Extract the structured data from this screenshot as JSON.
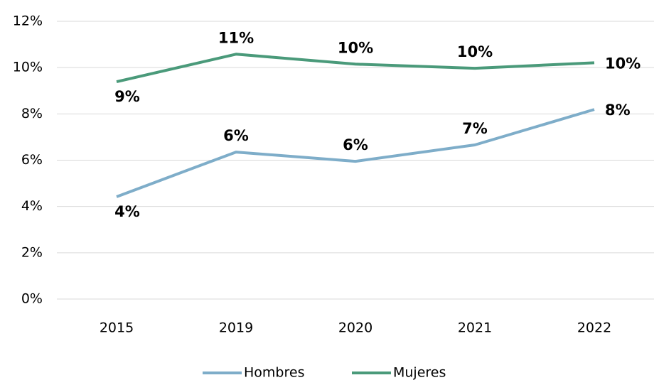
{
  "chart_data": {
    "type": "line",
    "categories": [
      "2015",
      "2019",
      "2020",
      "2021",
      "2022"
    ],
    "series": [
      {
        "name": "Hombres",
        "color": "#7eadc9",
        "values": [
          4.42,
          6.35,
          5.95,
          6.66,
          8.19
        ],
        "value_labels": [
          "4%",
          "6%",
          "6%",
          "7%",
          "8%"
        ]
      },
      {
        "name": "Mujeres",
        "color": "#4a9a7a",
        "values": [
          9.39,
          10.58,
          10.15,
          9.97,
          10.21
        ],
        "value_labels": [
          "9%",
          "11%",
          "10%",
          "10%",
          "10%"
        ]
      }
    ],
    "ylim": [
      0,
      12
    ],
    "yticks": [
      {
        "value": 0,
        "label": "0%"
      },
      {
        "value": 2,
        "label": "2%"
      },
      {
        "value": 4,
        "label": "4%"
      },
      {
        "value": 6,
        "label": "6%"
      },
      {
        "value": 8,
        "label": "8%"
      },
      {
        "value": 10,
        "label": "10%"
      },
      {
        "value": 12,
        "label": "12%"
      }
    ],
    "grid": true,
    "legend": "bottom"
  }
}
